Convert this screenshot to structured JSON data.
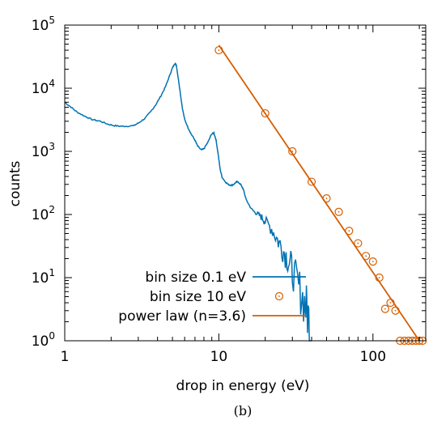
{
  "chart_data": {
    "type": "line",
    "xlabel": "drop in energy (eV)",
    "ylabel": "counts",
    "caption": "(b)",
    "x_scale": "log",
    "y_scale": "log",
    "xlim": [
      1,
      220
    ],
    "ylim": [
      1,
      100000
    ],
    "x_ticks": [
      {
        "value": 1,
        "label": "1"
      },
      {
        "value": 10,
        "label": "10"
      },
      {
        "value": 100,
        "label": "100"
      }
    ],
    "y_ticks": [
      {
        "value": 1,
        "base": "10",
        "exp": "0"
      },
      {
        "value": 10,
        "base": "10",
        "exp": "1"
      },
      {
        "value": 100,
        "base": "10",
        "exp": "2"
      },
      {
        "value": 1000,
        "base": "10",
        "exp": "3"
      },
      {
        "value": 10000,
        "base": "10",
        "exp": "4"
      },
      {
        "value": 100000,
        "base": "10",
        "exp": "5"
      }
    ],
    "grid": false,
    "legend_position": "bottom-center",
    "colors": {
      "fine": "#0072b2",
      "coarse": "#d55e00",
      "fit": "#d55e00",
      "axis": "#000000"
    },
    "series": [
      {
        "name": "bin size 0.1 eV",
        "style": "line",
        "x": [
          1.0,
          1.1,
          1.2,
          1.35,
          1.5,
          1.7,
          1.9,
          2.1,
          2.3,
          2.5,
          2.8,
          3.0,
          3.3,
          3.6,
          3.9,
          4.2,
          4.5,
          4.8,
          5.0,
          5.2,
          5.3,
          5.4,
          5.6,
          5.8,
          6.0,
          6.3,
          6.6,
          7.0,
          7.3,
          7.7,
          8.0,
          8.5,
          9.0,
          9.3,
          9.6,
          9.9,
          10.2,
          10.5,
          11.0,
          11.5,
          12.0,
          12.5,
          13.0,
          13.5,
          14.0,
          14.5,
          15.0,
          16.0,
          17.0,
          18.0,
          19.0,
          20.0,
          22.0,
          24.0,
          26.0,
          28.0,
          30.0,
          33.0,
          36.0,
          38.0,
          40.0
        ],
        "y": [
          6000,
          5000,
          4200,
          3600,
          3200,
          3000,
          2700,
          2550,
          2500,
          2500,
          2550,
          2800,
          3300,
          4200,
          5500,
          7500,
          10500,
          16000,
          21000,
          25000,
          23000,
          17000,
          9000,
          4800,
          3200,
          2400,
          1900,
          1500,
          1200,
          1050,
          1100,
          1400,
          1900,
          1950,
          1500,
          900,
          520,
          390,
          330,
          300,
          290,
          300,
          330,
          320,
          290,
          240,
          175,
          130,
          110,
          100,
          90,
          78,
          60,
          40,
          28,
          20,
          13,
          7,
          4,
          2.5,
          1
        ]
      },
      {
        "name": "bin size 10 eV",
        "style": "markers",
        "x": [
          10,
          20,
          30,
          40,
          50,
          60,
          70,
          80,
          90,
          100,
          110,
          120,
          130,
          140,
          150,
          160,
          170,
          180,
          190,
          200,
          210
        ],
        "y": [
          40000,
          4000,
          1000,
          330,
          180,
          110,
          55,
          35,
          22,
          18,
          10,
          3.2,
          4,
          3,
          1,
          1,
          1,
          1,
          1,
          1,
          1
        ]
      },
      {
        "name": "power law (n=3.6)",
        "style": "line",
        "x": [
          10,
          200
        ],
        "y": [
          48000,
          1
        ]
      }
    ]
  }
}
